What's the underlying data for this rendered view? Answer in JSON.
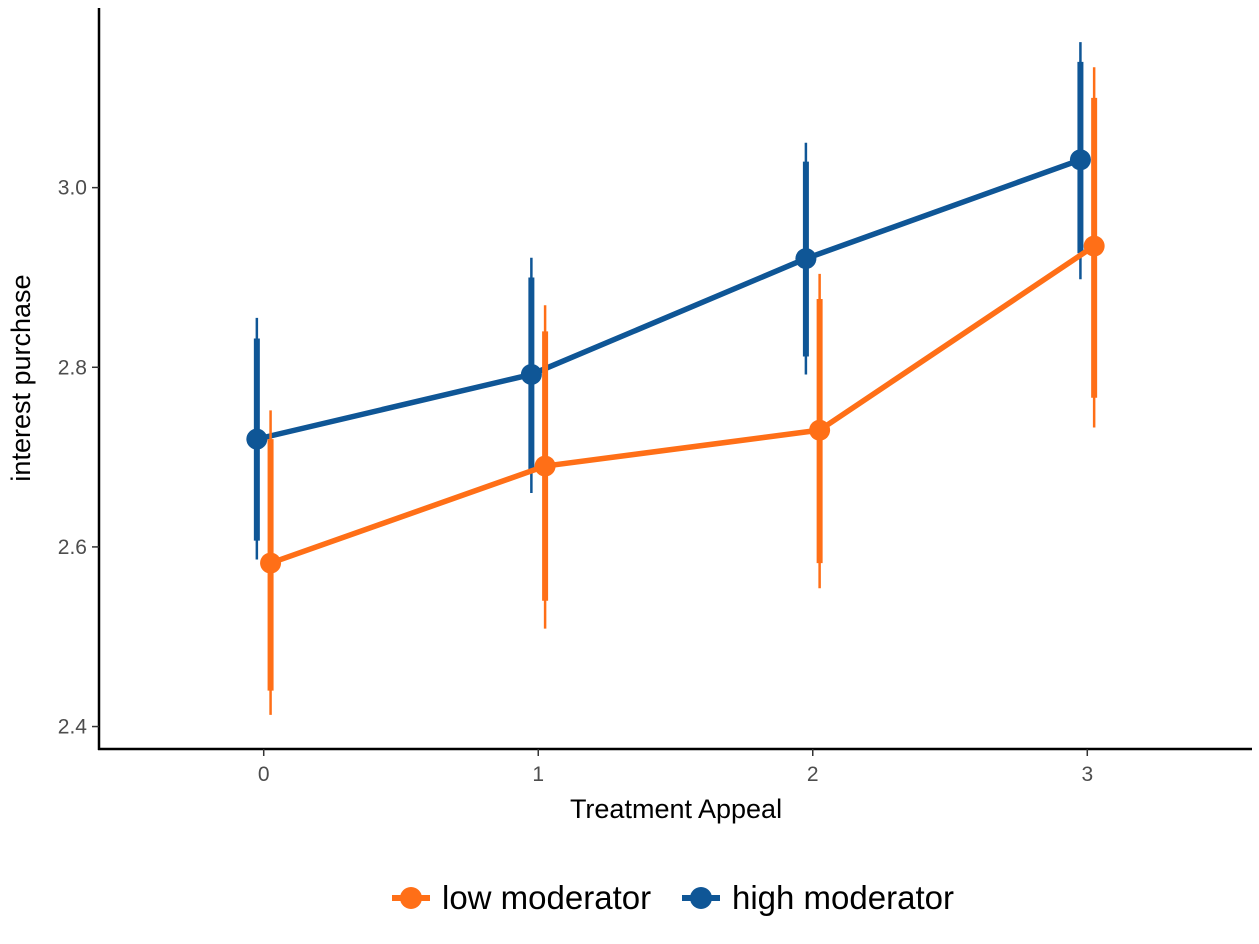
{
  "chart_data": {
    "type": "line",
    "title": "",
    "xlabel": "Treatment Appeal",
    "ylabel": "interest purchase",
    "x": [
      0,
      1,
      2,
      3
    ],
    "x_tick_labels": [
      "0",
      "1",
      "2",
      "3"
    ],
    "xlim": [
      -0.6,
      3.6
    ],
    "ylim": [
      2.375,
      3.2
    ],
    "y_ticks": [
      2.4,
      2.6,
      2.8,
      3.0
    ],
    "y_tick_labels": [
      "2.4",
      "2.6",
      "2.8",
      "3.0"
    ],
    "grid": false,
    "legend_position": "bottom",
    "series": [
      {
        "name": "low moderator",
        "color": "#FF6F17",
        "values": [
          2.582,
          2.69,
          2.73,
          2.935
        ],
        "inner_interval": [
          [
            2.44,
            2.72
          ],
          [
            2.54,
            2.84
          ],
          [
            2.582,
            2.876
          ],
          [
            2.766,
            3.1
          ]
        ],
        "outer_interval": [
          [
            2.413,
            2.752
          ],
          [
            2.509,
            2.869
          ],
          [
            2.554,
            2.904
          ],
          [
            2.733,
            3.134
          ]
        ]
      },
      {
        "name": "high moderator",
        "color": "#0F5696",
        "values": [
          2.72,
          2.792,
          2.921,
          3.031
        ],
        "inner_interval": [
          [
            2.607,
            2.832
          ],
          [
            2.685,
            2.9
          ],
          [
            2.812,
            3.029
          ],
          [
            2.927,
            3.14
          ]
        ],
        "outer_interval": [
          [
            2.586,
            2.855
          ],
          [
            2.66,
            2.922
          ],
          [
            2.792,
            3.05
          ],
          [
            2.898,
            3.162
          ]
        ]
      }
    ]
  }
}
